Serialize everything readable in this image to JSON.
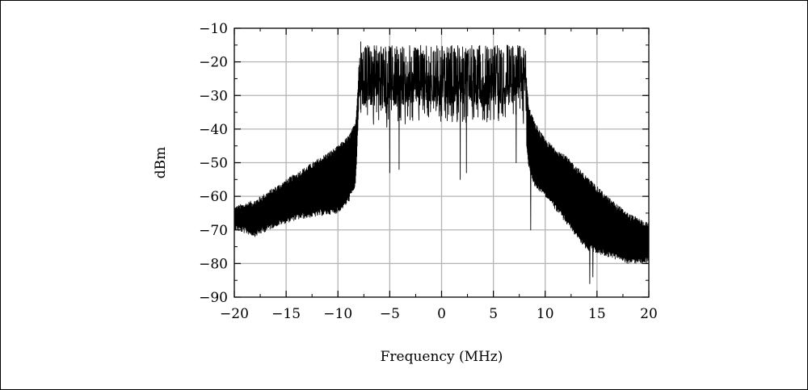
{
  "chart_data": {
    "type": "line",
    "xlabel": "Frequency (MHz)",
    "ylabel": "dBm",
    "xlim": [
      -20,
      20
    ],
    "ylim": [
      -90,
      -10
    ],
    "xticks": [
      -20,
      -15,
      -10,
      -5,
      0,
      5,
      10,
      15,
      20
    ],
    "xtick_labels": [
      "−20",
      "−15",
      "−10",
      "−5",
      "0",
      "5",
      "10",
      "15",
      "20"
    ],
    "yticks": [
      -90,
      -80,
      -70,
      -60,
      -50,
      -40,
      -30,
      -20,
      -10
    ],
    "ytick_labels": [
      "−90",
      "−80",
      "−70",
      "−60",
      "−50",
      "−40",
      "−30",
      "−20",
      "−10"
    ],
    "grid": true,
    "colors": {
      "trace": "#000000",
      "grid": "#b4b4b4",
      "axis": "#000000"
    },
    "series": [
      {
        "envelope_x": [
          -20,
          -18,
          -16,
          -14,
          -12,
          -10,
          -9,
          -8.3,
          -8,
          -7.5,
          -5,
          -2.5,
          0,
          2.5,
          5,
          7.5,
          8.1,
          8.4,
          9,
          10,
          12,
          14,
          16,
          18,
          20
        ],
        "upper": [
          -65,
          -63,
          -59,
          -55,
          -51,
          -47,
          -44,
          -40,
          -25,
          -21,
          -21,
          -21,
          -21,
          -21,
          -21,
          -21,
          -22,
          -35,
          -40,
          -45,
          -50,
          -56,
          -62,
          -67,
          -70
        ],
        "lower": [
          -68,
          -70,
          -67,
          -65,
          -64,
          -63,
          -60,
          -55,
          -33,
          -38,
          -40,
          -38,
          -38,
          -38,
          -38,
          -36,
          -40,
          -50,
          -55,
          -58,
          -66,
          -74,
          -76,
          -78,
          -78
        ],
        "spikes": [
          {
            "x": -7.8,
            "y": -14
          },
          {
            "x": -5.0,
            "y": -53
          },
          {
            "x": -4.1,
            "y": -52
          },
          {
            "x": 1.7,
            "y": -16
          },
          {
            "x": 1.8,
            "y": -55
          },
          {
            "x": 2.4,
            "y": -53
          },
          {
            "x": 7.6,
            "y": -16
          },
          {
            "x": 7.2,
            "y": -50
          },
          {
            "x": 8.6,
            "y": -70
          },
          {
            "x": 14.3,
            "y": -86
          },
          {
            "x": 14.6,
            "y": -84
          }
        ]
      }
    ]
  }
}
